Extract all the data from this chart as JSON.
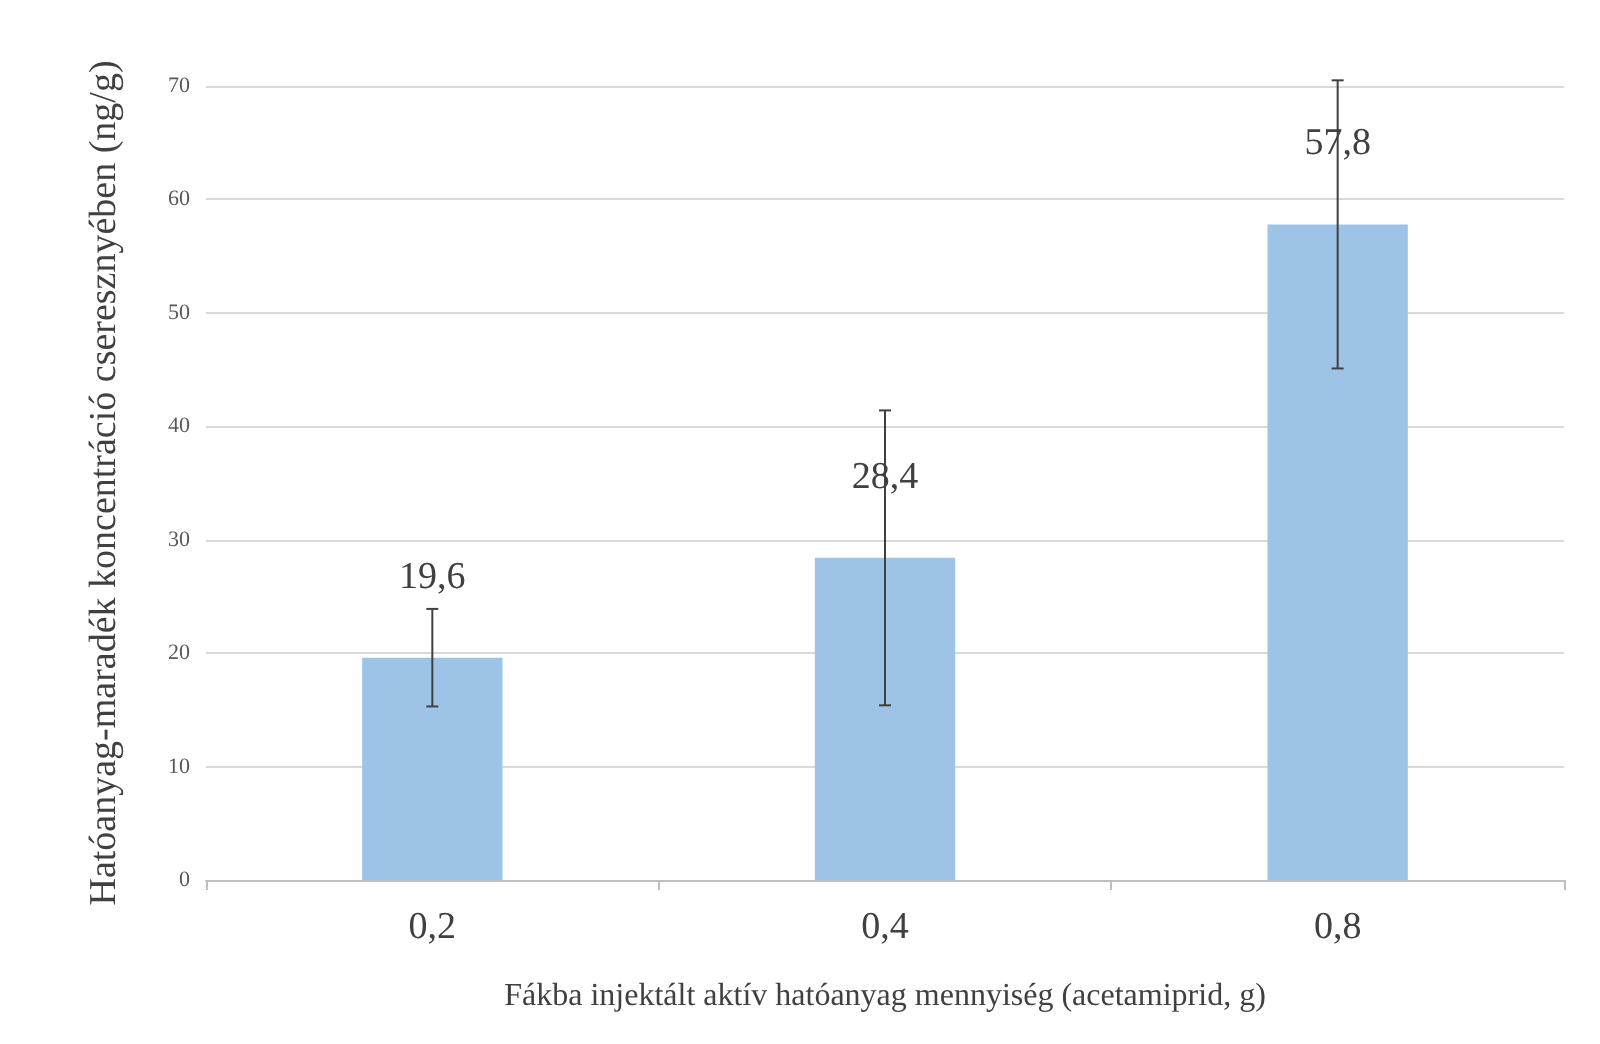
{
  "chart_data": {
    "type": "bar",
    "xlabel": "Fákba injektált aktív hatóanyag mennyiség (acetamiprid, g)",
    "ylabel": "Hatóanyag-maradék koncentráció cseresznyében (ng/g)",
    "categories": [
      "0,2",
      "0,4",
      "0,8"
    ],
    "values": [
      19.6,
      28.4,
      57.8
    ],
    "color": "#9dc3e6",
    "errors": [
      4.3,
      13,
      12.7
    ],
    "value_labels": [
      "19,6",
      "28,4",
      "57,8"
    ],
    "ylim": [
      0,
      70
    ],
    "yticks": [
      0,
      10,
      20,
      30,
      40,
      50,
      60,
      70
    ],
    "grid": "y"
  }
}
